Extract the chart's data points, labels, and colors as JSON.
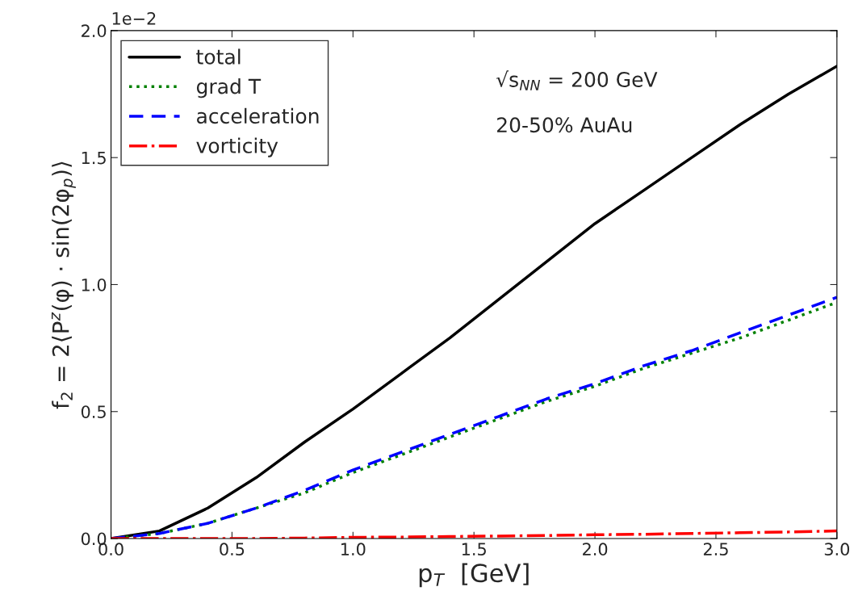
{
  "chart_data": {
    "type": "line",
    "xlabel": "p$_{T}$  [GeV]",
    "ylabel": "f$_{2}$ = 2⟨P$^{z}$(φ) · sin(2φ$_{p}$)⟩",
    "x": [
      0,
      0.2,
      0.4,
      0.6,
      0.8,
      1.0,
      1.2,
      1.4,
      1.6,
      1.8,
      2.0,
      2.2,
      2.4,
      2.6,
      2.8,
      3.0
    ],
    "series": [
      {
        "name": "total",
        "color": "#000000",
        "line_style": "solid",
        "values": [
          0,
          0.03,
          0.12,
          0.24,
          0.38,
          0.51,
          0.65,
          0.79,
          0.94,
          1.09,
          1.24,
          1.37,
          1.5,
          1.63,
          1.75,
          1.86
        ]
      },
      {
        "name": "grad T",
        "color": "#008000",
        "line_style": "dotted",
        "values": [
          0,
          0.02,
          0.06,
          0.12,
          0.18,
          0.26,
          0.33,
          0.4,
          0.47,
          0.54,
          0.6,
          0.67,
          0.73,
          0.79,
          0.86,
          0.93
        ]
      },
      {
        "name": "acceleration",
        "color": "#0000ff",
        "line_style": "dashed",
        "values": [
          0,
          0.02,
          0.06,
          0.12,
          0.19,
          0.27,
          0.34,
          0.41,
          0.48,
          0.55,
          0.61,
          0.68,
          0.74,
          0.81,
          0.88,
          0.95
        ]
      },
      {
        "name": "vorticity",
        "color": "#ff0000",
        "line_style": "dashdot",
        "values": [
          0,
          0,
          0,
          0,
          0.002,
          0.005,
          0.006,
          0.008,
          0.01,
          0.012,
          0.015,
          0.017,
          0.02,
          0.023,
          0.026,
          0.03
        ]
      }
    ],
    "xlim": [
      0,
      3.0
    ],
    "xticks": [
      {
        "value": 0,
        "label": "0.0"
      },
      0.5,
      {
        "value": 1,
        "label": "1.0"
      },
      1.5,
      {
        "value": 2,
        "label": "2.0"
      },
      2.5,
      {
        "value": 3,
        "label": "3.0"
      }
    ],
    "ylim": [
      0,
      2.0
    ],
    "yticks": [
      {
        "value": 0,
        "label": "0.0"
      },
      0.5,
      {
        "value": 1,
        "label": "1.0"
      },
      1.5,
      {
        "value": 2,
        "label": "2.0"
      }
    ],
    "annotations": [
      "1e−2",
      "√s$_{NN}$ = 200 GeV",
      "20-50% AuAu"
    ],
    "legend": "top left",
    "grid": false,
    "marker": "none"
  }
}
